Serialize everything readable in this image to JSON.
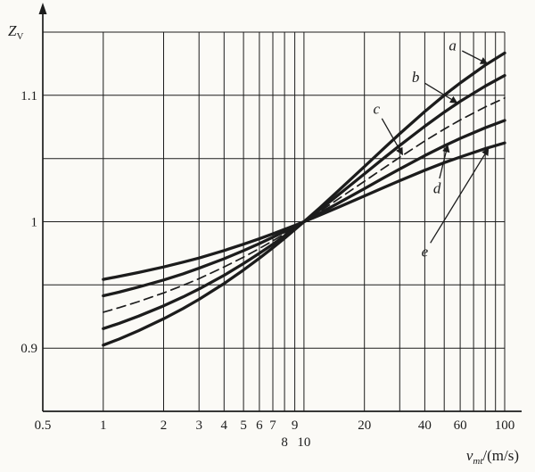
{
  "figure": {
    "background": "#fbfaf6",
    "ink": "#1c1c1c"
  },
  "chart_data": {
    "type": "line",
    "title": "",
    "x_axis": {
      "label_base": "v",
      "label_sub": "mt",
      "label_rest": "/(m/s)",
      "scale": "log",
      "min": 0.5,
      "max": 100,
      "gridlines": [
        1,
        2,
        3,
        4,
        5,
        6,
        7,
        8,
        9,
        10,
        20,
        30,
        40,
        50,
        60,
        70,
        80,
        90,
        100
      ],
      "ticks_row1": [
        {
          "v": 0.5,
          "label": "0.5"
        },
        {
          "v": 1,
          "label": "1"
        },
        {
          "v": 2,
          "label": "2"
        },
        {
          "v": 3,
          "label": "3"
        },
        {
          "v": 4,
          "label": "4"
        },
        {
          "v": 5,
          "label": "5"
        },
        {
          "v": 6,
          "label": "6"
        },
        {
          "v": 7,
          "label": "7"
        },
        {
          "v": 9,
          "label": "9"
        },
        {
          "v": 20,
          "label": "20"
        },
        {
          "v": 40,
          "label": "40"
        },
        {
          "v": 60,
          "label": "60"
        },
        {
          "v": 100,
          "label": "100"
        }
      ],
      "ticks_row2": [
        {
          "v": 8,
          "label": "8"
        },
        {
          "v": 10,
          "label": "10"
        }
      ]
    },
    "y_axis": {
      "label_base": "Z",
      "label_sub": "V",
      "min": 0.85,
      "max": 1.15,
      "gridlines": [
        0.85,
        0.9,
        0.95,
        1.0,
        1.05,
        1.1,
        1.15
      ],
      "ticks": [
        {
          "z": 0.9,
          "label": "0.9"
        },
        {
          "z": 1.0,
          "label": "1"
        },
        {
          "z": 1.1,
          "label": "1.1"
        }
      ]
    },
    "x": [
      1,
      1.2,
      1.5,
      2,
      2.5,
      3,
      4,
      5,
      6,
      7,
      8,
      9,
      10,
      12,
      15,
      20,
      25,
      30,
      40,
      50,
      60,
      80,
      100
    ],
    "series": [
      {
        "name": "a",
        "line": "solid",
        "values": [
          0.9024,
          0.9072,
          0.9138,
          0.9232,
          0.9313,
          0.9386,
          0.9511,
          0.9618,
          0.9711,
          0.9794,
          0.9869,
          0.9937,
          1.0,
          1.0111,
          1.0252,
          1.0436,
          1.058,
          1.0696,
          1.0872,
          1.1,
          1.1098,
          1.1239,
          1.1335
        ]
      },
      {
        "name": "b",
        "line": "solid",
        "values": [
          0.9154,
          0.9196,
          0.9253,
          0.9334,
          0.9405,
          0.9468,
          0.9576,
          0.9669,
          0.975,
          0.9822,
          0.9887,
          0.9946,
          1.0,
          1.0096,
          1.0218,
          1.0378,
          1.0503,
          1.0603,
          1.0755,
          1.0867,
          1.0952,
          1.1073,
          1.1157
        ]
      },
      {
        "name": "c",
        "line": "dashed",
        "values": [
          0.9284,
          0.932,
          0.9368,
          0.9437,
          0.9497,
          0.955,
          0.9642,
          0.972,
          0.9788,
          0.9849,
          0.9904,
          0.9954,
          1.0,
          1.0082,
          1.0185,
          1.032,
          1.0425,
          1.051,
          1.0639,
          1.0733,
          1.0805,
          1.0908,
          1.0979
        ]
      },
      {
        "name": "d",
        "line": "solid",
        "values": [
          0.9414,
          0.9443,
          0.9483,
          0.9539,
          0.9588,
          0.9632,
          0.9707,
          0.9771,
          0.9827,
          0.9877,
          0.9922,
          0.9962,
          1.0,
          1.0067,
          1.0151,
          1.0262,
          1.0348,
          1.0417,
          1.0523,
          1.06,
          1.0659,
          1.0743,
          1.0801
        ]
      },
      {
        "name": "e",
        "line": "solid",
        "values": [
          0.9544,
          0.9567,
          0.9598,
          0.9642,
          0.968,
          0.9713,
          0.9772,
          0.9822,
          0.9865,
          0.9904,
          0.9939,
          0.9971,
          1.0,
          1.0052,
          1.0117,
          1.0204,
          1.0271,
          1.0325,
          1.0407,
          1.0467,
          1.0512,
          1.0578,
          1.0623
        ]
      }
    ],
    "curve_labels": [
      {
        "label": "a",
        "label_v": 55,
        "label_z": 1.139,
        "tip_v": 82,
        "tip_z": 1.125
      },
      {
        "label": "b",
        "label_v": 36,
        "label_z": 1.114,
        "tip_v": 58,
        "tip_z": 1.094
      },
      {
        "label": "c",
        "label_v": 23,
        "label_z": 1.089,
        "tip_v": 31,
        "tip_z": 1.053
      },
      {
        "label": "d",
        "label_v": 46,
        "label_z": 1.026,
        "tip_v": 52,
        "tip_z": 1.0605
      },
      {
        "label": "e",
        "label_v": 40,
        "label_z": 0.976,
        "tip_v": 83,
        "tip_z": 1.058
      }
    ]
  }
}
